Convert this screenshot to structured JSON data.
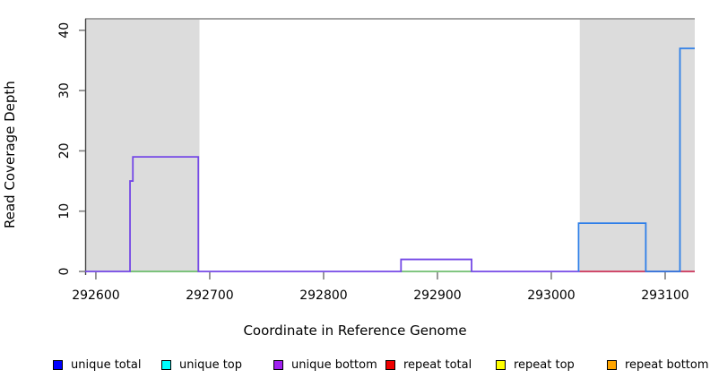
{
  "figure": {
    "xlabel": "Coordinate in Reference Genome",
    "ylabel": "Read Coverage Depth"
  },
  "legend": {
    "position": "bottom",
    "items": [
      {
        "label": "unique total",
        "color": "#0000ff"
      },
      {
        "label": "unique top",
        "color": "#00ffff"
      },
      {
        "label": "unique bottom",
        "color": "#a020f0"
      },
      {
        "label": "repeat total",
        "color": "#ee0000"
      },
      {
        "label": "repeat top",
        "color": "#ffff00"
      },
      {
        "label": "repeat bottom",
        "color": "#ffa500"
      }
    ]
  },
  "chart_data": {
    "type": "line",
    "subtype": "step-coverage",
    "title": "",
    "xlabel": "Coordinate in Reference Genome",
    "ylabel": "Read Coverage Depth",
    "xlim": [
      292590.6,
      293126
    ],
    "ylim": [
      0,
      41.9
    ],
    "x_ticks": [
      292600,
      292700,
      292800,
      292900,
      293000,
      293100
    ],
    "y_ticks": [
      0,
      10,
      20,
      30,
      40
    ],
    "grid": false,
    "top_border_color": "#a3a3a3",
    "axis_line_color": "#454545",
    "tick_color": "#808080",
    "shaded_regions": [
      {
        "name": "repeat-masked-region-left",
        "x0": 292590.6,
        "x1": 292691,
        "color": "#dcdcdc"
      },
      {
        "name": "repeat-masked-region-right",
        "x0": 293025,
        "x1": 293126,
        "color": "#dcdcdc"
      }
    ],
    "series": [
      {
        "name": "unique bottom",
        "legend_color": "#a020f0",
        "plot_color": "#7448e6",
        "points": [
          [
            292590.6,
            0
          ],
          [
            292630,
            0
          ],
          [
            292630,
            15
          ],
          [
            292632.5,
            15
          ],
          [
            292632.5,
            19
          ],
          [
            292690,
            19
          ],
          [
            292690,
            0
          ],
          [
            292868,
            0
          ],
          [
            292868,
            2
          ],
          [
            292930,
            2
          ],
          [
            292930,
            0
          ],
          [
            293126,
            0
          ]
        ]
      },
      {
        "name": "unique top",
        "legend_color": "#00ffff",
        "plot_color": "#6fbe6f",
        "segments": [
          [
            [
              292630,
              0
            ],
            [
              292690,
              0
            ]
          ],
          [
            [
              292868,
              0
            ],
            [
              292930,
              0
            ]
          ]
        ]
      },
      {
        "name": "repeat total",
        "legend_color": "#ee0000",
        "plot_color": "#d9455a",
        "points": [
          [
            293025,
            0
          ],
          [
            293126,
            0
          ]
        ]
      },
      {
        "name": "unique total",
        "legend_color": "#0000ff",
        "plot_color": "#2e7fe8",
        "points": [
          [
            293024,
            0
          ],
          [
            293024,
            8
          ],
          [
            293083,
            8
          ],
          [
            293083,
            0
          ],
          [
            293113,
            0
          ],
          [
            293113,
            37
          ],
          [
            293126,
            37
          ]
        ]
      },
      {
        "name": "repeat top",
        "legend_color": "#ffff00",
        "plot_color": "#ffff00",
        "points": []
      },
      {
        "name": "repeat bottom",
        "legend_color": "#ffa500",
        "plot_color": "#ffa500",
        "points": []
      }
    ]
  }
}
